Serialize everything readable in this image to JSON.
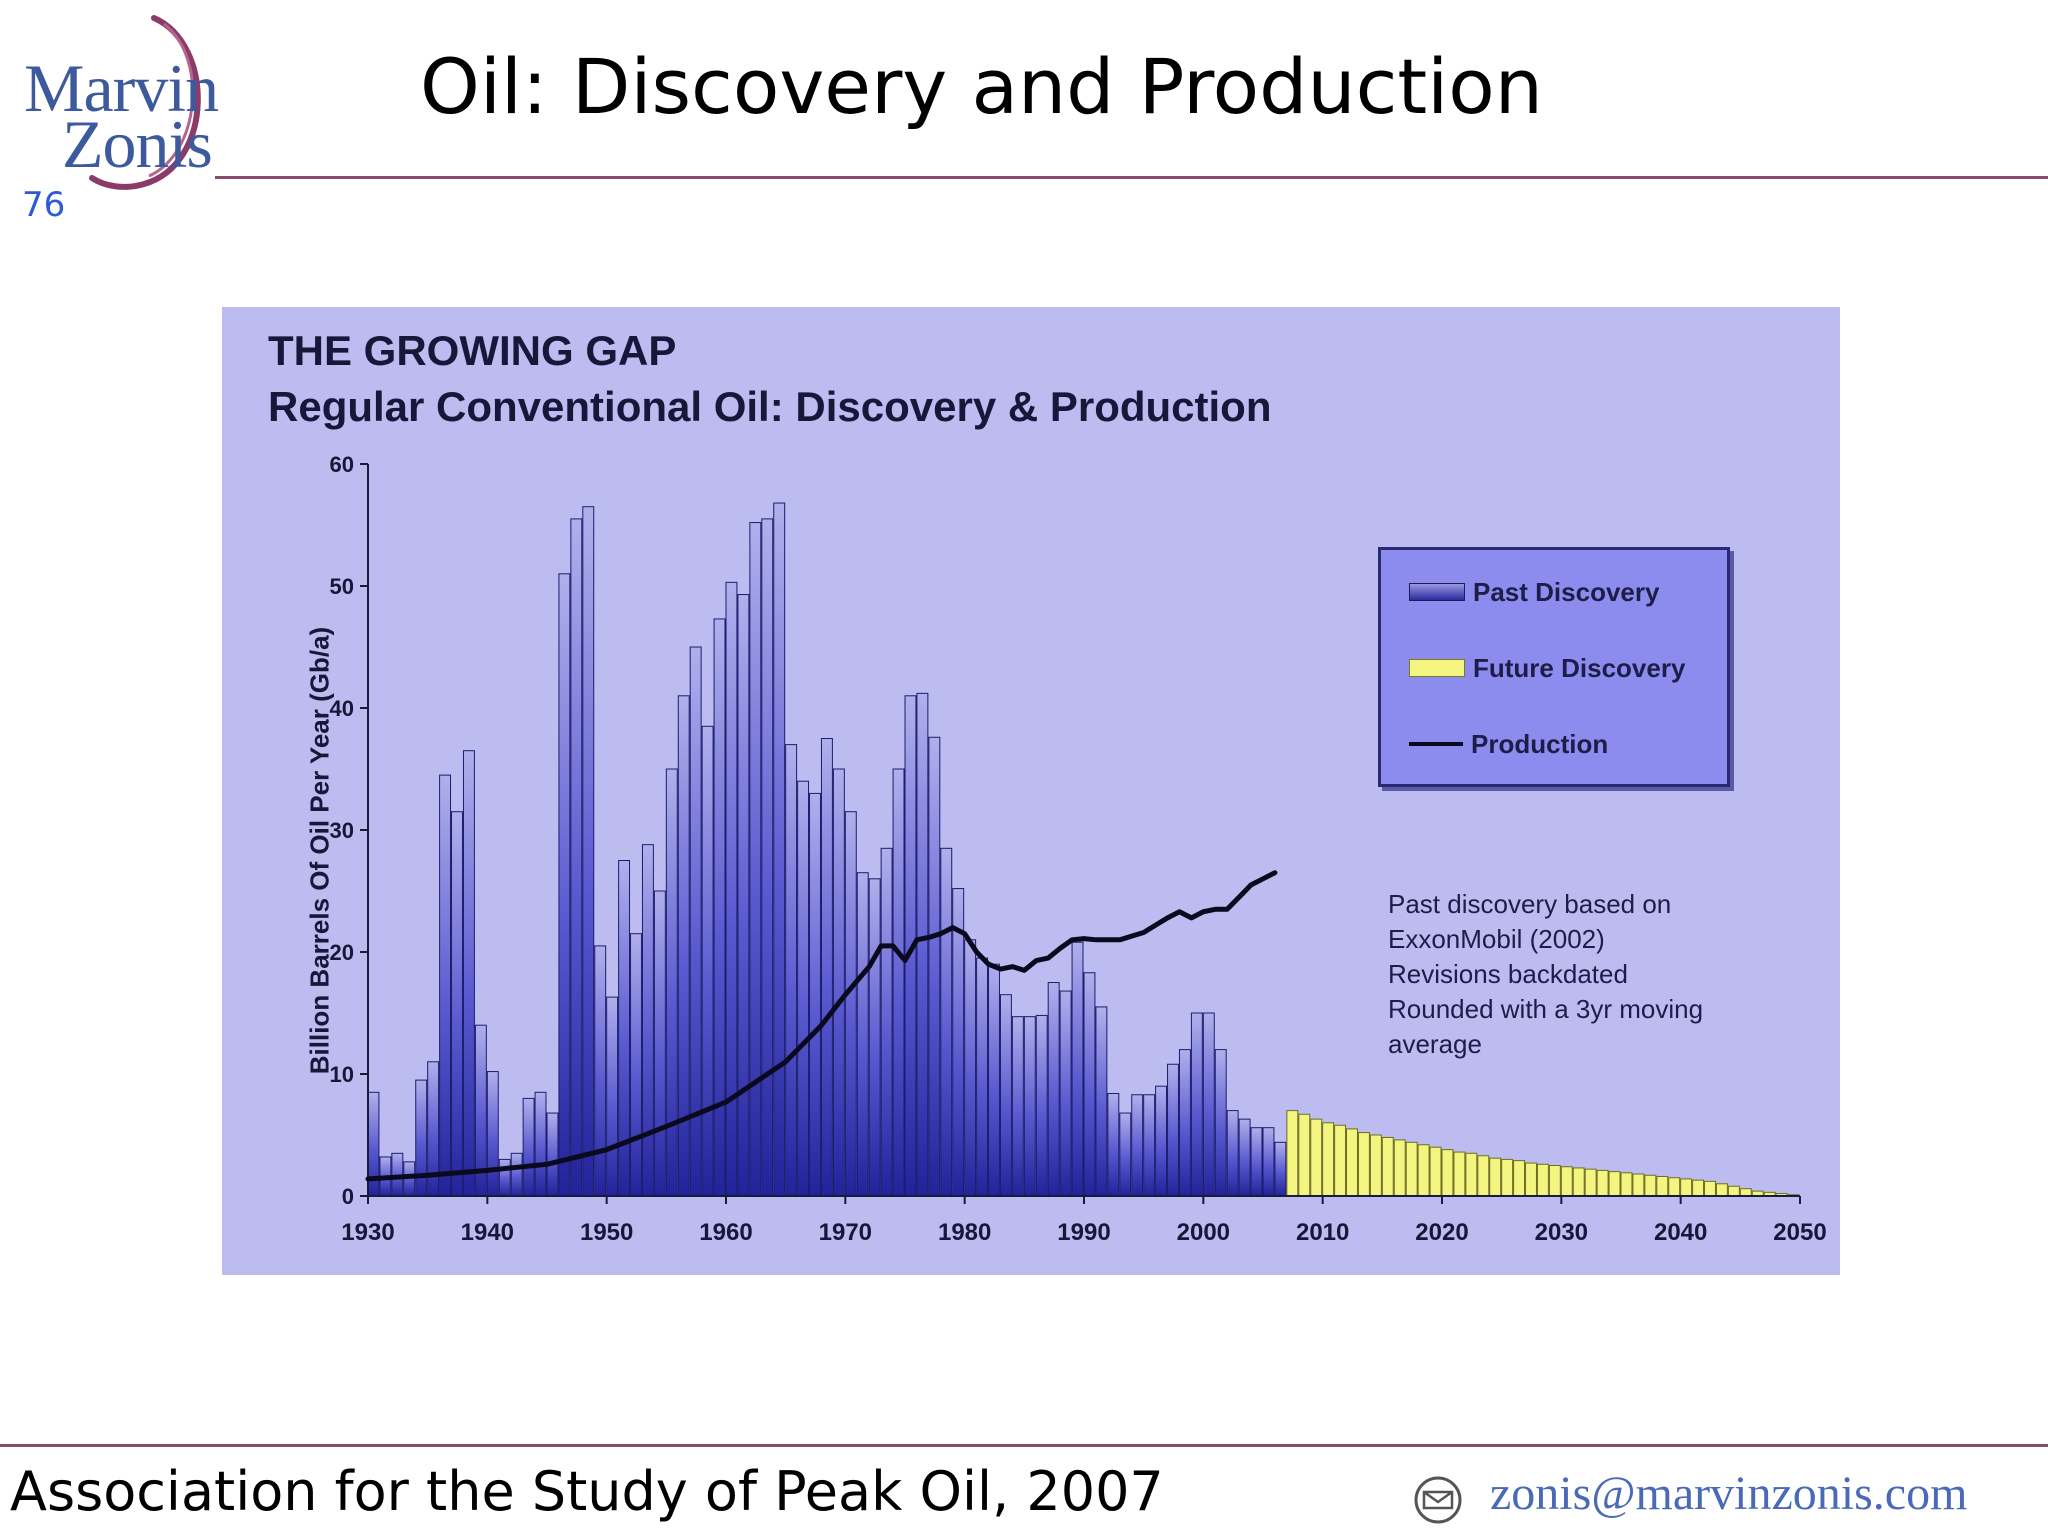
{
  "header": {
    "logo_line1": "Marvin",
    "logo_line2": "Zonis",
    "slide_number": "76",
    "title": "Oil: Discovery and Production"
  },
  "footer": {
    "source": "Association for the Study of Peak Oil, 2007",
    "email": "zonis@marvinzonis.com"
  },
  "colors": {
    "accent_rule": "#8c4a6e",
    "panel_bg": "#bcbcf0",
    "past_discovery": "#4a4ac0",
    "future_discovery": "#f4f480",
    "production": "#0a0a1e"
  },
  "chart_data": {
    "type": "bar",
    "title": "THE GROWING GAP",
    "subtitle": "Regular Conventional Oil: Discovery & Production",
    "xlabel": "",
    "ylabel": "Billion Barrels Of Oil Per Year (Gb/a)",
    "xlim": [
      1930,
      2050
    ],
    "ylim": [
      0,
      60
    ],
    "x_ticks": [
      1930,
      1940,
      1950,
      1960,
      1970,
      1980,
      1990,
      2000,
      2010,
      2020,
      2030,
      2040,
      2050
    ],
    "y_ticks": [
      0,
      10,
      20,
      30,
      40,
      50,
      60
    ],
    "legend": {
      "position": "right",
      "entries": [
        "Past Discovery",
        "Future Discovery",
        "Production"
      ]
    },
    "annotation": [
      "Past discovery based on",
      "ExxonMobil (2002)",
      "Revisions backdated",
      "Rounded with a 3yr moving",
      "average"
    ],
    "series": [
      {
        "name": "Past Discovery",
        "type": "bar",
        "start_year": 1930,
        "values": [
          8.5,
          3.2,
          3.5,
          2.8,
          9.5,
          11,
          34.5,
          31.5,
          36.5,
          14,
          10.2,
          3,
          3.5,
          8,
          8.5,
          6.8,
          51,
          55.5,
          56.5,
          20.5,
          16.3,
          27.5,
          21.5,
          28.8,
          25,
          35,
          41,
          45,
          38.5,
          47.3,
          50.3,
          49.3,
          55.2,
          55.5,
          56.8,
          37,
          34,
          33,
          37.5,
          35,
          31.5,
          26.5,
          26,
          28.5,
          35,
          41,
          41.2,
          37.6,
          28.5,
          25.2,
          21,
          19.5,
          19,
          16.5,
          14.7,
          14.7,
          14.8,
          17.5,
          16.8,
          20.8,
          18.3,
          15.5,
          8.4,
          6.8,
          8.3,
          8.3,
          9,
          10.8,
          12,
          15,
          15,
          12,
          7,
          6.3,
          5.6,
          5.6,
          4.4
        ]
      },
      {
        "name": "Future Discovery",
        "type": "bar",
        "start_year": 2007,
        "values": [
          7,
          6.7,
          6.3,
          6,
          5.8,
          5.5,
          5.2,
          5,
          4.8,
          4.6,
          4.4,
          4.2,
          4,
          3.8,
          3.6,
          3.5,
          3.3,
          3.1,
          3,
          2.9,
          2.7,
          2.6,
          2.5,
          2.4,
          2.3,
          2.2,
          2.1,
          2,
          1.9,
          1.8,
          1.7,
          1.6,
          1.5,
          1.4,
          1.3,
          1.2,
          1,
          0.8,
          0.6,
          0.4,
          0.3,
          0.2,
          0.1
        ]
      },
      {
        "name": "Production",
        "type": "line",
        "x": [
          1930,
          1935,
          1940,
          1945,
          1950,
          1955,
          1960,
          1965,
          1968,
          1970,
          1972,
          1973,
          1974,
          1975,
          1976,
          1977,
          1978,
          1979,
          1980,
          1981,
          1982,
          1983,
          1984,
          1985,
          1986,
          1987,
          1988,
          1989,
          1990,
          1991,
          1992,
          1993,
          1994,
          1995,
          1996,
          1997,
          1998,
          1999,
          2000,
          2001,
          2002,
          2003,
          2004,
          2005,
          2006
        ],
        "y": [
          1.4,
          1.7,
          2.1,
          2.6,
          3.8,
          5.7,
          7.7,
          11,
          14,
          16.5,
          18.8,
          20.5,
          20.5,
          19.3,
          21,
          21.2,
          21.5,
          22,
          21.5,
          20,
          19,
          18.6,
          18.8,
          18.5,
          19.3,
          19.5,
          20.3,
          21,
          21.1,
          21,
          21,
          21,
          21.3,
          21.6,
          22.2,
          22.8,
          23.3,
          22.8,
          23.3,
          23.5,
          23.5,
          24.5,
          25.5,
          26,
          26.5
        ]
      }
    ]
  }
}
